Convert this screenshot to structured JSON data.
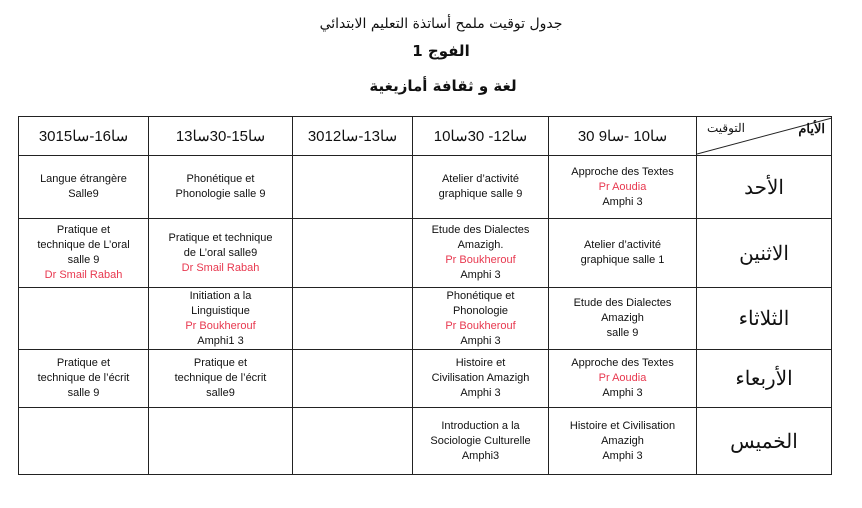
{
  "title": "جدول توقيت ملمح أساتذة التعليم الابتدائي",
  "group": "الفوج 1",
  "subject": "لغة و ثقافة أمازيغية",
  "corner": {
    "days": "الأيام",
    "time": "التوقيت"
  },
  "accent_color": "#e8384f",
  "time_slots": [
    "30سا16-سا15",
    "سا15-30سا13",
    "30سا13-سا12",
    "سا12- 30سا10",
    "30 سا10 -سا9"
  ],
  "rows": [
    {
      "day": "الأحد",
      "cells": [
        {
          "lines": [
            "Langue étrangère",
            "Salle9"
          ]
        },
        {
          "lines": [
            "Phonétique et",
            "Phonologie   salle 9"
          ]
        },
        {
          "lines": []
        },
        {
          "lines": [
            "Atelier d’activité",
            "graphique salle 9"
          ]
        },
        {
          "lines": [
            "Approche des Textes"
          ],
          "teacher": "Pr Aoudia",
          "room": "Amphi 3"
        }
      ]
    },
    {
      "day": "الاثنين",
      "cells": [
        {
          "lines": [
            "Pratique et",
            "technique de L’oral",
            "salle 9"
          ],
          "teacher": "Dr Smail Rabah"
        },
        {
          "lines": [
            "Pratique et technique",
            "de L’oral salle9"
          ],
          "teacher": "Dr Smail Rabah"
        },
        {
          "lines": []
        },
        {
          "lines": [
            "Etude des Dialectes",
            "Amazigh."
          ],
          "teacher": "Pr Boukherouf",
          "room": "Amphi 3"
        },
        {
          "lines": [
            "Atelier d’activité",
            "graphique salle 1"
          ]
        }
      ]
    },
    {
      "day": "الثلاثاء",
      "cells": [
        {
          "lines": []
        },
        {
          "lines": [
            "Initiation a la",
            "Linguistique"
          ],
          "teacher": "Pr Boukherouf",
          "room": "Amphi1 3"
        },
        {
          "lines": []
        },
        {
          "lines": [
            "Phonétique et",
            "Phonologie"
          ],
          "teacher": "Pr Boukherouf",
          "room": "Amphi 3"
        },
        {
          "lines": [
            "Etude des Dialectes",
            "Amazigh",
            "salle 9"
          ]
        }
      ]
    },
    {
      "day": "الأربعاء",
      "cells": [
        {
          "lines": [
            "Pratique et",
            "technique de l’écrit",
            "salle 9"
          ]
        },
        {
          "lines": [
            "Pratique et",
            "technique de l’écrit",
            "salle9"
          ]
        },
        {
          "lines": []
        },
        {
          "lines": [
            "Histoire et",
            "Civilisation Amazigh",
            "Amphi 3"
          ]
        },
        {
          "lines": [
            "Approche des Textes"
          ],
          "teacher": "Pr Aoudia",
          "room": "Amphi 3"
        }
      ]
    },
    {
      "day": "الخميس",
      "cells": [
        {
          "lines": []
        },
        {
          "lines": []
        },
        {
          "lines": []
        },
        {
          "lines": [
            "Introduction a la",
            "Sociologie Culturelle",
            "Amphi3"
          ]
        },
        {
          "lines": [
            "Histoire et Civilisation",
            "Amazigh",
            "Amphi 3"
          ]
        }
      ]
    }
  ]
}
